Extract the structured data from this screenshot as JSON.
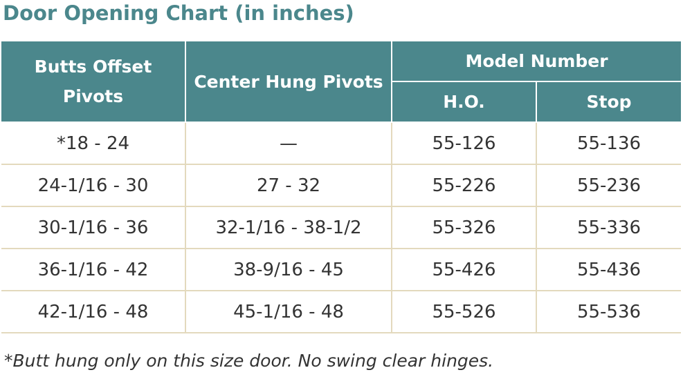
{
  "title": "Door Opening Chart (in inches)",
  "table": {
    "header": {
      "butts": "Butts Offset Pivots",
      "center": "Center Hung Pivots",
      "group": "Model Number",
      "sub": [
        "H.O.",
        "Stop"
      ]
    },
    "rows": [
      [
        "*18 - 24",
        "—",
        "55-126",
        "55-136"
      ],
      [
        "24-1/16 - 30",
        "27 - 32",
        "55-226",
        "55-236"
      ],
      [
        "30-1/16 - 36",
        "32-1/16 - 38-1/2",
        "55-326",
        "55-336"
      ],
      [
        "36-1/16 - 42",
        "38-9/16 - 45",
        "55-426",
        "55-436"
      ],
      [
        "42-1/16 - 48",
        "45-1/16 - 48",
        "55-526",
        "55-536"
      ]
    ]
  },
  "footnote": "*Butt hung only on this size door. No swing clear hinges."
}
